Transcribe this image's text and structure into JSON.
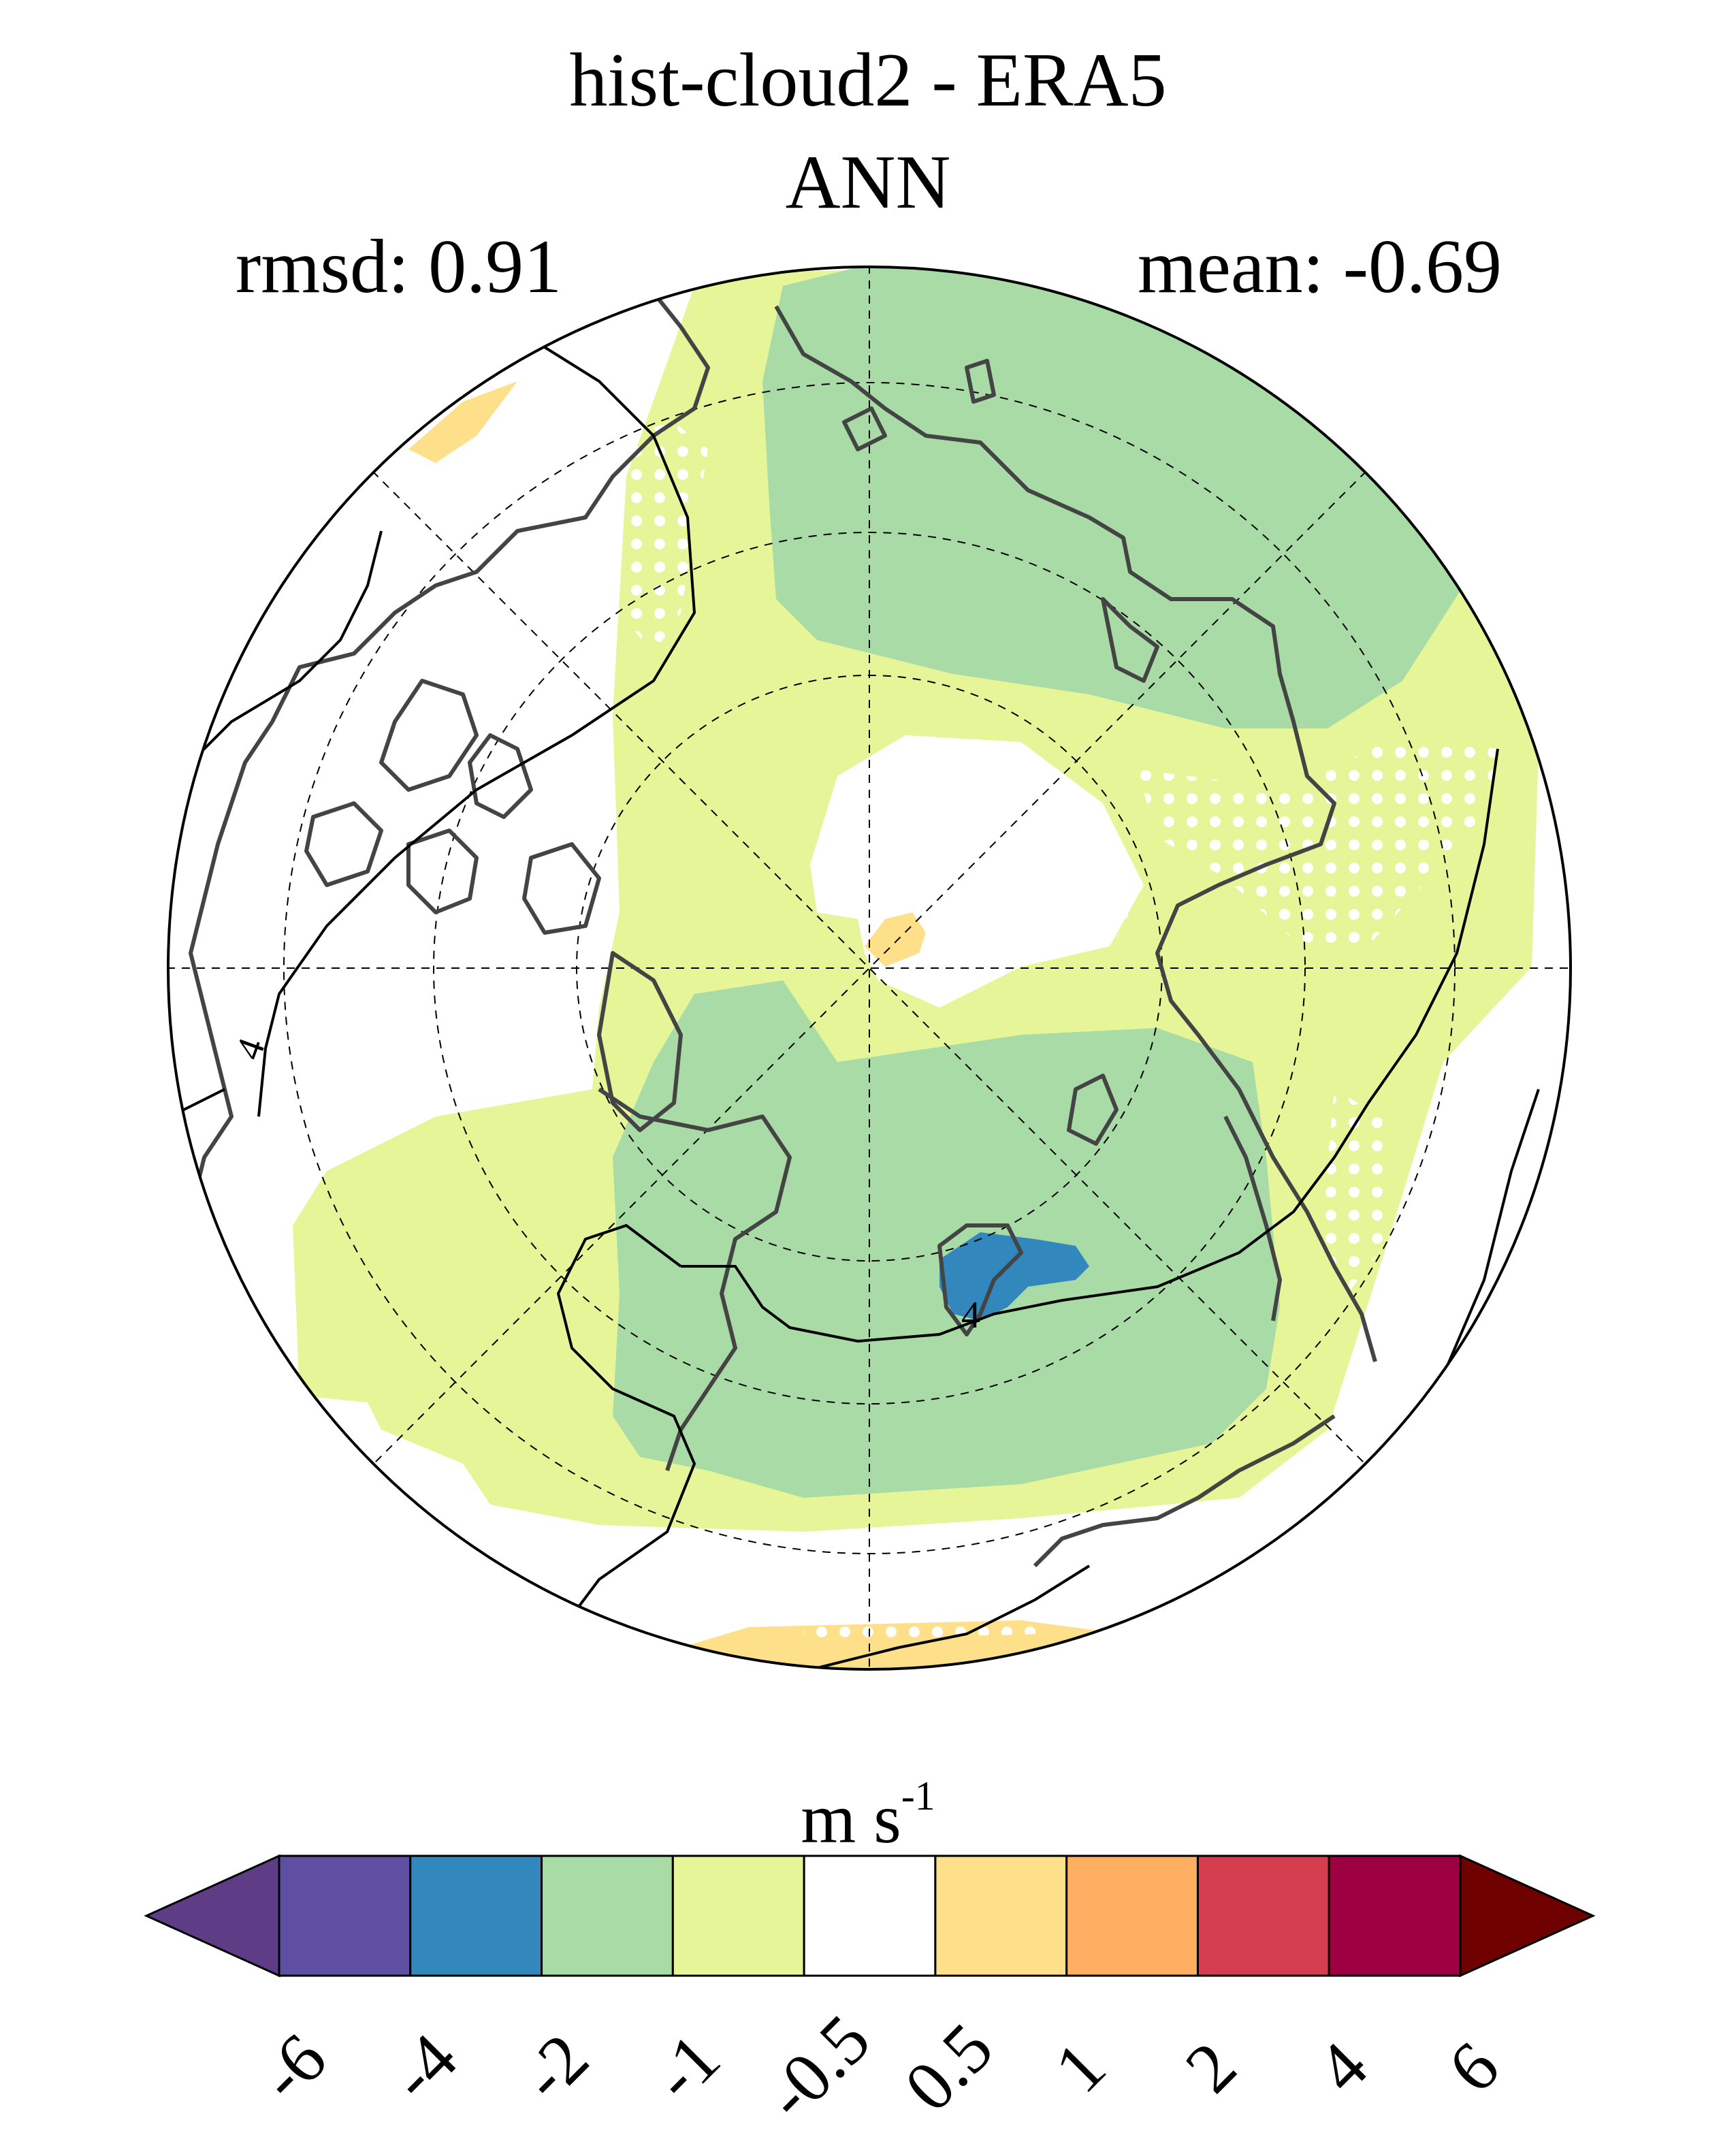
{
  "title": {
    "main": "hist-cloud2 - ERA5",
    "season": "ANN"
  },
  "stats": {
    "rmsd_label": "rmsd: 0.91",
    "mean_label": "mean: -0.69"
  },
  "map": {
    "projection": "north polar stereographic",
    "contour_labels": [
      "4",
      "4"
    ]
  },
  "colorbar": {
    "units_base": "m s",
    "units_exp": "-1",
    "ticks": [
      "-6",
      "-4",
      "-2",
      "-1",
      "-0.5",
      "0.5",
      "1",
      "2",
      "4",
      "6"
    ],
    "colors": {
      "under": "#5e3c86",
      "bins": [
        "#5e4fa2",
        "#3288bd",
        "#a8dba5",
        "#e6f598",
        "#ffffff",
        "#fee08b",
        "#fdae61",
        "#d53e4f",
        "#9e0142"
      ],
      "over": "#6e0000"
    }
  }
}
